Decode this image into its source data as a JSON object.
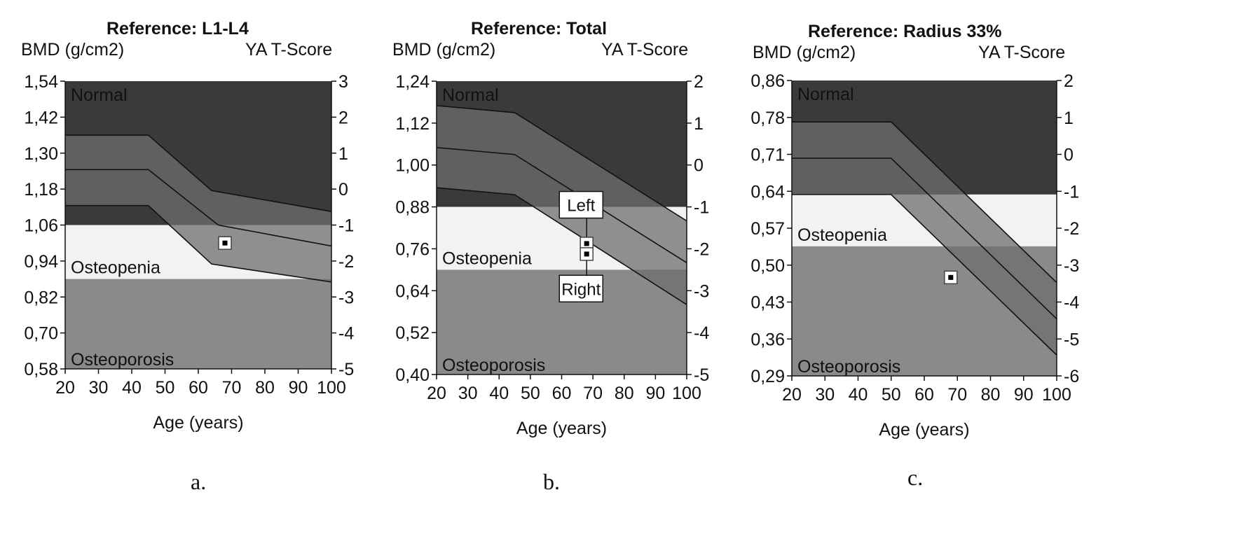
{
  "chart_data": [
    {
      "type": "area",
      "title": "Reference: L1-L4",
      "ylabel_left": "BMD (g/cm2)",
      "ylabel_right": "YA T-Score",
      "xlabel": "Age (years)",
      "caption": "a.",
      "x_ticks": [
        "20",
        "30",
        "40",
        "50",
        "60",
        "70",
        "80",
        "90",
        "100"
      ],
      "xlim": [
        20,
        100
      ],
      "y_left_ticks": [
        "1,54",
        "1,42",
        "1,30",
        "1,18",
        "1,06",
        "0,94",
        "0,82",
        "0,70",
        "0,58"
      ],
      "ylim_left": [
        0.58,
        1.54
      ],
      "y_right_ticks": [
        "3",
        "2",
        "1",
        "0",
        "-1",
        "-2",
        "-3",
        "-4",
        "-5"
      ],
      "ylim_right": [
        -5,
        3
      ],
      "zones": [
        {
          "label": "Normal",
          "from": 1.06,
          "to": 1.54,
          "color": "#3a3a3a"
        },
        {
          "label": "Osteopenia",
          "from": 0.88,
          "to": 1.06,
          "color": "#f2f2f2"
        },
        {
          "label": "Osteoporosis",
          "from": 0.58,
          "to": 0.88,
          "color": "#8a8a8a"
        }
      ],
      "band_color": "#6e6e6e",
      "curves": [
        {
          "x": [
            20,
            45,
            64,
            100
          ],
          "y": [
            1.36,
            1.36,
            1.175,
            1.105
          ]
        },
        {
          "x": [
            20,
            45,
            66,
            100
          ],
          "y": [
            1.245,
            1.245,
            1.06,
            0.99
          ]
        },
        {
          "x": [
            20,
            45,
            64,
            100
          ],
          "y": [
            1.125,
            1.125,
            0.93,
            0.87
          ]
        }
      ],
      "points": [
        {
          "x": 68,
          "y": 1.0
        }
      ],
      "annotations": []
    },
    {
      "type": "area",
      "title": "Reference: Total",
      "ylabel_left": "BMD (g/cm2)",
      "ylabel_right": "YA T-Score",
      "xlabel": "Age (years)",
      "caption": "b.",
      "x_ticks": [
        "20",
        "30",
        "40",
        "50",
        "60",
        "70",
        "80",
        "90",
        "100"
      ],
      "xlim": [
        20,
        100
      ],
      "y_left_ticks": [
        "1,24",
        "1,12",
        "1,00",
        "0,88",
        "0,76",
        "0,64",
        "0,52",
        "0,40"
      ],
      "ylim_left": [
        0.4,
        1.24
      ],
      "y_right_ticks": [
        "2",
        "1",
        "0",
        "-1",
        "-2",
        "-3",
        "-4",
        "-5"
      ],
      "ylim_right": [
        -5,
        2
      ],
      "zones": [
        {
          "label": "Normal",
          "from": 0.88,
          "to": 1.24,
          "color": "#3a3a3a"
        },
        {
          "label": "Osteopenia",
          "from": 0.7,
          "to": 0.88,
          "color": "#f2f2f2"
        },
        {
          "label": "Osteoporosis",
          "from": 0.4,
          "to": 0.7,
          "color": "#8a8a8a"
        }
      ],
      "band_color": "#6e6e6e",
      "curves": [
        {
          "x": [
            20,
            45,
            100
          ],
          "y": [
            1.17,
            1.15,
            0.84
          ]
        },
        {
          "x": [
            20,
            45,
            100
          ],
          "y": [
            1.05,
            1.03,
            0.72
          ]
        },
        {
          "x": [
            20,
            45,
            100
          ],
          "y": [
            0.935,
            0.915,
            0.6
          ]
        }
      ],
      "points": [
        {
          "x": 68,
          "y": 0.775
        },
        {
          "x": 68,
          "y": 0.745
        }
      ],
      "annotations": [
        {
          "text": "Left",
          "x": 66,
          "y": 0.88
        },
        {
          "text": "Right",
          "x": 66,
          "y": 0.64
        }
      ]
    },
    {
      "type": "area",
      "title": "Reference: Radius 33%",
      "ylabel_left": "BMD (g/cm2)",
      "ylabel_right": "YA T-Score",
      "xlabel": "Age (years)",
      "caption": "c.",
      "x_ticks": [
        "20",
        "30",
        "40",
        "50",
        "60",
        "70",
        "80",
        "90",
        "100"
      ],
      "xlim": [
        20,
        100
      ],
      "y_left_ticks": [
        "0,86",
        "0,78",
        "0,71",
        "0,64",
        "0,57",
        "0,50",
        "0,43",
        "0,36",
        "0,29"
      ],
      "ylim_left": [
        0.29,
        0.86
      ],
      "y_right_ticks": [
        "2",
        "1",
        "0",
        "-1",
        "-2",
        "-3",
        "-4",
        "-5",
        "-6"
      ],
      "ylim_right": [
        -6,
        2
      ],
      "zones": [
        {
          "label": "Normal",
          "from": 0.64,
          "to": 0.86,
          "color": "#3a3a3a"
        },
        {
          "label": "Osteopenia",
          "from": 0.54,
          "to": 0.64,
          "color": "#f2f2f2"
        },
        {
          "label": "Osteoporosis",
          "from": 0.29,
          "to": 0.54,
          "color": "#8a8a8a"
        }
      ],
      "band_color": "#6e6e6e",
      "curves": [
        {
          "x": [
            20,
            50,
            100
          ],
          "y": [
            0.78,
            0.78,
            0.47
          ]
        },
        {
          "x": [
            20,
            50,
            100
          ],
          "y": [
            0.71,
            0.71,
            0.4
          ]
        },
        {
          "x": [
            20,
            50,
            100
          ],
          "y": [
            0.64,
            0.64,
            0.33
          ]
        }
      ],
      "points": [
        {
          "x": 68,
          "y": 0.48
        }
      ],
      "annotations": []
    }
  ]
}
